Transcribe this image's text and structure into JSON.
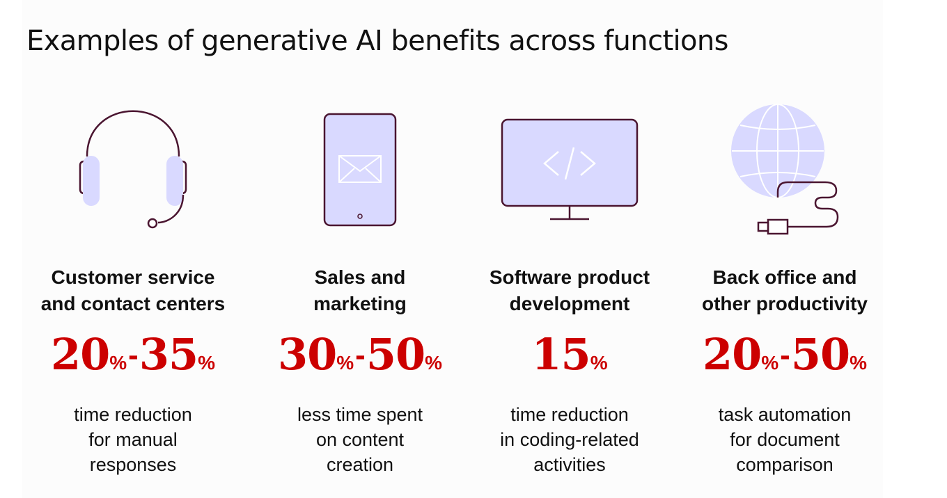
{
  "title": "Examples of generative AI benefits across functions",
  "colors": {
    "accent_red": "#cc0000",
    "icon_stroke": "#4a1530",
    "icon_fill": "#d9d9ff"
  },
  "columns": [
    {
      "icon": "headset-icon",
      "heading_line1": "Customer service",
      "heading_line2": "and contact centers",
      "stat_low": "20",
      "stat_low_unit": "%",
      "stat_sep": "-",
      "stat_high": "35",
      "stat_high_unit": "%",
      "desc_line1": "time reduction",
      "desc_line2": "for manual",
      "desc_line3": "responses"
    },
    {
      "icon": "tablet-mail-icon",
      "heading_line1": "Sales and",
      "heading_line2": "marketing",
      "stat_low": "30",
      "stat_low_unit": "%",
      "stat_sep": "-",
      "stat_high": "50",
      "stat_high_unit": "%",
      "desc_line1": "less time spent",
      "desc_line2": "on content",
      "desc_line3": "creation"
    },
    {
      "icon": "monitor-code-icon",
      "heading_line1": "Software product",
      "heading_line2": "development",
      "stat_value": "15",
      "stat_unit": "%",
      "desc_line1": "time reduction",
      "desc_line2": "in coding-related",
      "desc_line3": "activities"
    },
    {
      "icon": "globe-plug-icon",
      "heading_line1": "Back office and",
      "heading_line2": "other productivity",
      "stat_low": "20",
      "stat_low_unit": "%",
      "stat_sep": "-",
      "stat_high": "50",
      "stat_high_unit": "%",
      "desc_line1": "task automation",
      "desc_line2": "for document",
      "desc_line3": "comparison"
    }
  ]
}
